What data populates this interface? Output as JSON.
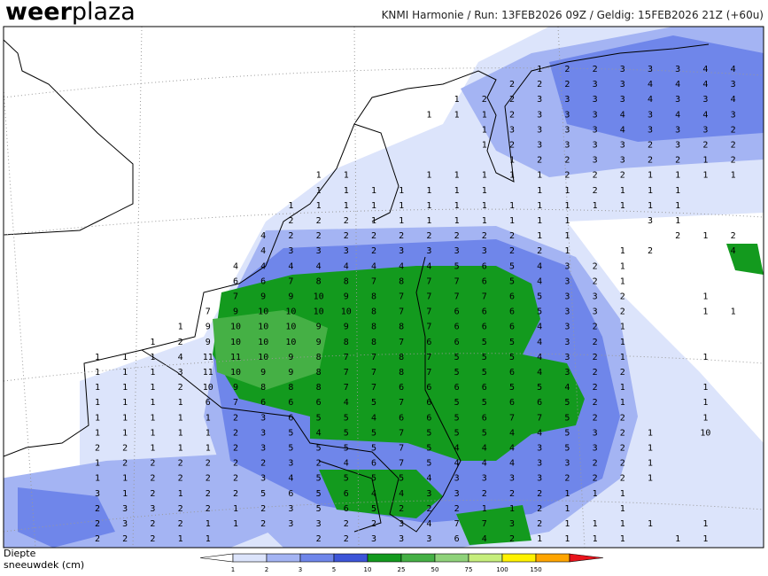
{
  "header": {
    "logo_bold": "weer",
    "logo_rest": "plaza",
    "info": "KNMI Harmonie / Run: 13FEB2026 09Z / Geldig: 15FEB2026 21Z (+60u)"
  },
  "legend": {
    "line1": "Diepte",
    "line2": "sneeuwdek (cm)",
    "ticks": [
      1,
      2,
      3,
      5,
      10,
      25,
      50,
      75,
      100,
      150
    ],
    "colors": [
      "#ffffff",
      "#dce4fb",
      "#a4b4f3",
      "#6f86ea",
      "#3d55d8",
      "#139a1e",
      "#45b045",
      "#8fd27a",
      "#c6ee7c",
      "#fff200",
      "#ffa500",
      "#e8141c"
    ]
  },
  "map": {
    "rows": [
      [
        null,
        null,
        null,
        null,
        null,
        null,
        null,
        null,
        null,
        null,
        null,
        null,
        null,
        null,
        null,
        null,
        1,
        2,
        2,
        3,
        3,
        3,
        4,
        4
      ],
      [
        null,
        null,
        null,
        null,
        null,
        null,
        null,
        null,
        null,
        null,
        null,
        null,
        null,
        null,
        null,
        2,
        2,
        2,
        3,
        3,
        4,
        4,
        4,
        3
      ],
      [
        null,
        null,
        null,
        null,
        null,
        null,
        null,
        null,
        null,
        null,
        null,
        null,
        null,
        1,
        2,
        2,
        3,
        3,
        3,
        3,
        4,
        3,
        3,
        4
      ],
      [
        null,
        null,
        null,
        null,
        null,
        null,
        null,
        null,
        null,
        null,
        null,
        null,
        1,
        1,
        1,
        2,
        3,
        3,
        3,
        4,
        3,
        4,
        4,
        3
      ],
      [
        null,
        null,
        null,
        null,
        null,
        null,
        null,
        null,
        null,
        null,
        null,
        null,
        null,
        null,
        1,
        3,
        3,
        3,
        3,
        4,
        3,
        3,
        3,
        2
      ],
      [
        null,
        null,
        null,
        null,
        null,
        null,
        null,
        null,
        null,
        null,
        null,
        null,
        null,
        null,
        1,
        2,
        3,
        3,
        3,
        3,
        2,
        3,
        2,
        2
      ],
      [
        null,
        null,
        null,
        null,
        null,
        null,
        null,
        null,
        null,
        null,
        null,
        null,
        null,
        null,
        null,
        1,
        2,
        2,
        3,
        3,
        2,
        2,
        1,
        2
      ],
      [
        null,
        null,
        null,
        null,
        null,
        null,
        null,
        null,
        1,
        1,
        null,
        null,
        1,
        1,
        1,
        1,
        1,
        2,
        2,
        2,
        1,
        1,
        1,
        1
      ],
      [
        null,
        null,
        null,
        null,
        null,
        null,
        null,
        null,
        1,
        1,
        1,
        1,
        1,
        1,
        1,
        null,
        1,
        1,
        2,
        1,
        1,
        1,
        null,
        null
      ],
      [
        null,
        null,
        null,
        null,
        null,
        null,
        null,
        1,
        1,
        1,
        1,
        1,
        1,
        1,
        1,
        1,
        1,
        1,
        1,
        1,
        1,
        1,
        null,
        null
      ],
      [
        null,
        null,
        null,
        null,
        null,
        null,
        null,
        2,
        2,
        2,
        1,
        1,
        1,
        1,
        1,
        1,
        1,
        1,
        null,
        null,
        3,
        1,
        null,
        null
      ],
      [
        null,
        null,
        null,
        null,
        null,
        null,
        4,
        2,
        2,
        2,
        2,
        2,
        2,
        2,
        2,
        2,
        1,
        1,
        null,
        null,
        null,
        2,
        1,
        2
      ],
      [
        null,
        null,
        null,
        null,
        null,
        null,
        4,
        3,
        3,
        3,
        2,
        3,
        3,
        3,
        3,
        2,
        2,
        1,
        null,
        1,
        2,
        null,
        null,
        4
      ],
      [
        null,
        null,
        null,
        null,
        null,
        4,
        4,
        4,
        4,
        4,
        4,
        4,
        4,
        5,
        6,
        5,
        4,
        3,
        2,
        1,
        null,
        null,
        null,
        null
      ],
      [
        null,
        null,
        null,
        null,
        null,
        6,
        6,
        7,
        8,
        8,
        7,
        8,
        7,
        7,
        6,
        5,
        4,
        3,
        2,
        1,
        null,
        null,
        null,
        null
      ],
      [
        null,
        null,
        null,
        null,
        null,
        7,
        9,
        9,
        10,
        9,
        8,
        7,
        7,
        7,
        7,
        6,
        5,
        3,
        3,
        2,
        null,
        null,
        1,
        null
      ],
      [
        null,
        null,
        null,
        null,
        7,
        9,
        10,
        10,
        10,
        10,
        8,
        7,
        7,
        6,
        6,
        6,
        5,
        3,
        3,
        2,
        null,
        null,
        1,
        1
      ],
      [
        null,
        null,
        null,
        1,
        9,
        10,
        10,
        10,
        9,
        9,
        8,
        8,
        7,
        6,
        6,
        6,
        4,
        3,
        2,
        1,
        null,
        null,
        null,
        null
      ],
      [
        null,
        null,
        1,
        2,
        9,
        10,
        10,
        10,
        9,
        8,
        8,
        7,
        6,
        6,
        5,
        5,
        4,
        3,
        2,
        1,
        null,
        null,
        null,
        null
      ],
      [
        1,
        1,
        1,
        4,
        11,
        11,
        10,
        9,
        8,
        7,
        7,
        8,
        7,
        5,
        5,
        5,
        4,
        3,
        2,
        1,
        null,
        null,
        1,
        null
      ],
      [
        1,
        1,
        1,
        3,
        11,
        10,
        9,
        9,
        8,
        7,
        7,
        8,
        7,
        5,
        5,
        6,
        4,
        3,
        2,
        2,
        null,
        null,
        null,
        null
      ],
      [
        1,
        1,
        1,
        2,
        10,
        9,
        8,
        8,
        8,
        7,
        7,
        6,
        6,
        6,
        6,
        5,
        5,
        4,
        2,
        1,
        null,
        null,
        1,
        null
      ],
      [
        1,
        1,
        1,
        1,
        6,
        7,
        6,
        6,
        6,
        4,
        5,
        7,
        6,
        5,
        5,
        6,
        6,
        5,
        2,
        1,
        null,
        null,
        1,
        null
      ],
      [
        1,
        1,
        1,
        1,
        1,
        2,
        3,
        6,
        5,
        5,
        4,
        6,
        6,
        5,
        6,
        7,
        7,
        5,
        2,
        2,
        null,
        null,
        1,
        null
      ],
      [
        1,
        1,
        1,
        1,
        1,
        2,
        3,
        5,
        4,
        5,
        5,
        7,
        5,
        5,
        5,
        4,
        4,
        5,
        3,
        2,
        1,
        null,
        10,
        null
      ],
      [
        2,
        2,
        1,
        1,
        1,
        2,
        3,
        5,
        5,
        5,
        5,
        7,
        5,
        4,
        4,
        4,
        3,
        5,
        3,
        2,
        1,
        null,
        null,
        null
      ],
      [
        1,
        2,
        2,
        2,
        2,
        2,
        2,
        3,
        2,
        4,
        6,
        7,
        5,
        4,
        4,
        4,
        3,
        3,
        2,
        2,
        1,
        null,
        null,
        null
      ],
      [
        1,
        1,
        2,
        2,
        2,
        2,
        3,
        4,
        5,
        5,
        5,
        5,
        4,
        3,
        3,
        3,
        3,
        2,
        2,
        2,
        1,
        null,
        null,
        null
      ],
      [
        3,
        1,
        2,
        1,
        2,
        2,
        5,
        6,
        5,
        6,
        4,
        4,
        3,
        3,
        2,
        2,
        2,
        1,
        1,
        1,
        null,
        null,
        null,
        null
      ],
      [
        2,
        3,
        3,
        2,
        2,
        1,
        2,
        3,
        5,
        6,
        5,
        2,
        2,
        2,
        1,
        1,
        2,
        1,
        null,
        1,
        null,
        null,
        null,
        null
      ],
      [
        2,
        3,
        2,
        2,
        1,
        1,
        2,
        3,
        3,
        2,
        2,
        3,
        4,
        7,
        7,
        3,
        2,
        1,
        1,
        1,
        1,
        null,
        1,
        null
      ],
      [
        2,
        2,
        2,
        1,
        1,
        null,
        null,
        null,
        2,
        2,
        3,
        3,
        3,
        6,
        4,
        2,
        1,
        1,
        1,
        1,
        null,
        1,
        1,
        null
      ]
    ]
  }
}
